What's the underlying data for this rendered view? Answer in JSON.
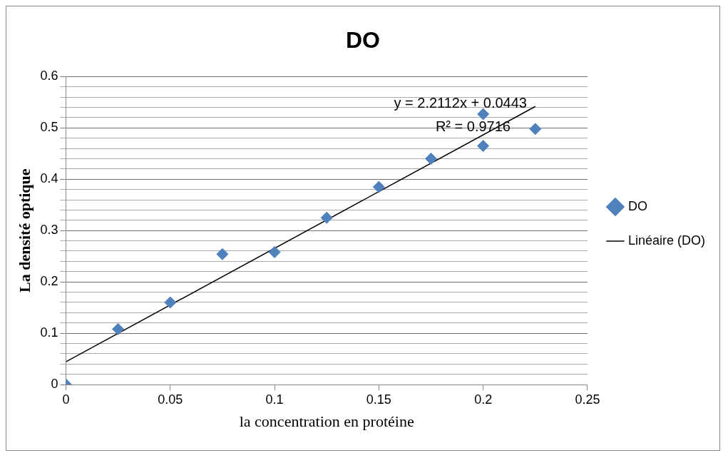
{
  "chart_data": {
    "type": "scatter",
    "title": "DO",
    "xlabel": "la concentration en protéine",
    "ylabel": "La densité optique",
    "x": [
      0,
      0.025,
      0.05,
      0.075,
      0.1,
      0.125,
      0.15,
      0.175,
      0.2,
      0.2,
      0.225
    ],
    "series": [
      {
        "name": "DO",
        "color": "#4f81bd",
        "values": [
          0,
          0.108,
          0.16,
          0.254,
          0.258,
          0.325,
          0.385,
          0.44,
          0.527,
          0.465,
          0.498
        ],
        "marker": "diamond"
      },
      {
        "name": "Linéaire (DO)",
        "type": "line",
        "color": "#000000",
        "x": [
          0,
          0.225
        ],
        "values": [
          0.0443,
          0.5418
        ],
        "marker": "none",
        "line_style": "solid"
      }
    ],
    "xlim": [
      0,
      0.25
    ],
    "xticks": [
      0,
      0.05,
      0.1,
      0.15,
      0.2,
      0.25
    ],
    "ylim": [
      0,
      0.6
    ],
    "yticks": [
      0,
      {
        "value": 0.02,
        "label": null
      },
      {
        "value": 0.04,
        "label": null
      },
      {
        "value": 0.06,
        "label": null
      },
      {
        "value": 0.08,
        "label": null
      },
      0.1,
      {
        "value": 0.12,
        "label": null
      },
      {
        "value": 0.14,
        "label": null
      },
      {
        "value": 0.16,
        "label": null
      },
      {
        "value": 0.18,
        "label": null
      },
      0.2,
      {
        "value": 0.22,
        "label": null
      },
      {
        "value": 0.24,
        "label": null
      },
      {
        "value": 0.26,
        "label": null
      },
      {
        "value": 0.28,
        "label": null
      },
      0.3,
      {
        "value": 0.32,
        "label": null
      },
      {
        "value": 0.34,
        "label": null
      },
      {
        "value": 0.36,
        "label": null
      },
      {
        "value": 0.38,
        "label": null
      },
      0.4,
      {
        "value": 0.42,
        "label": null
      },
      {
        "value": 0.44,
        "label": null
      },
      {
        "value": 0.46,
        "label": null
      },
      {
        "value": 0.48,
        "label": null
      },
      0.5,
      {
        "value": 0.52,
        "label": null
      },
      {
        "value": 0.54,
        "label": null
      },
      {
        "value": 0.56,
        "label": null
      },
      {
        "value": 0.58,
        "label": null
      },
      0.6
    ],
    "grid": "y",
    "legend": "right",
    "annotations": [
      "y = 2.2112x + 0.0443",
      "R² = 0.9716"
    ]
  }
}
